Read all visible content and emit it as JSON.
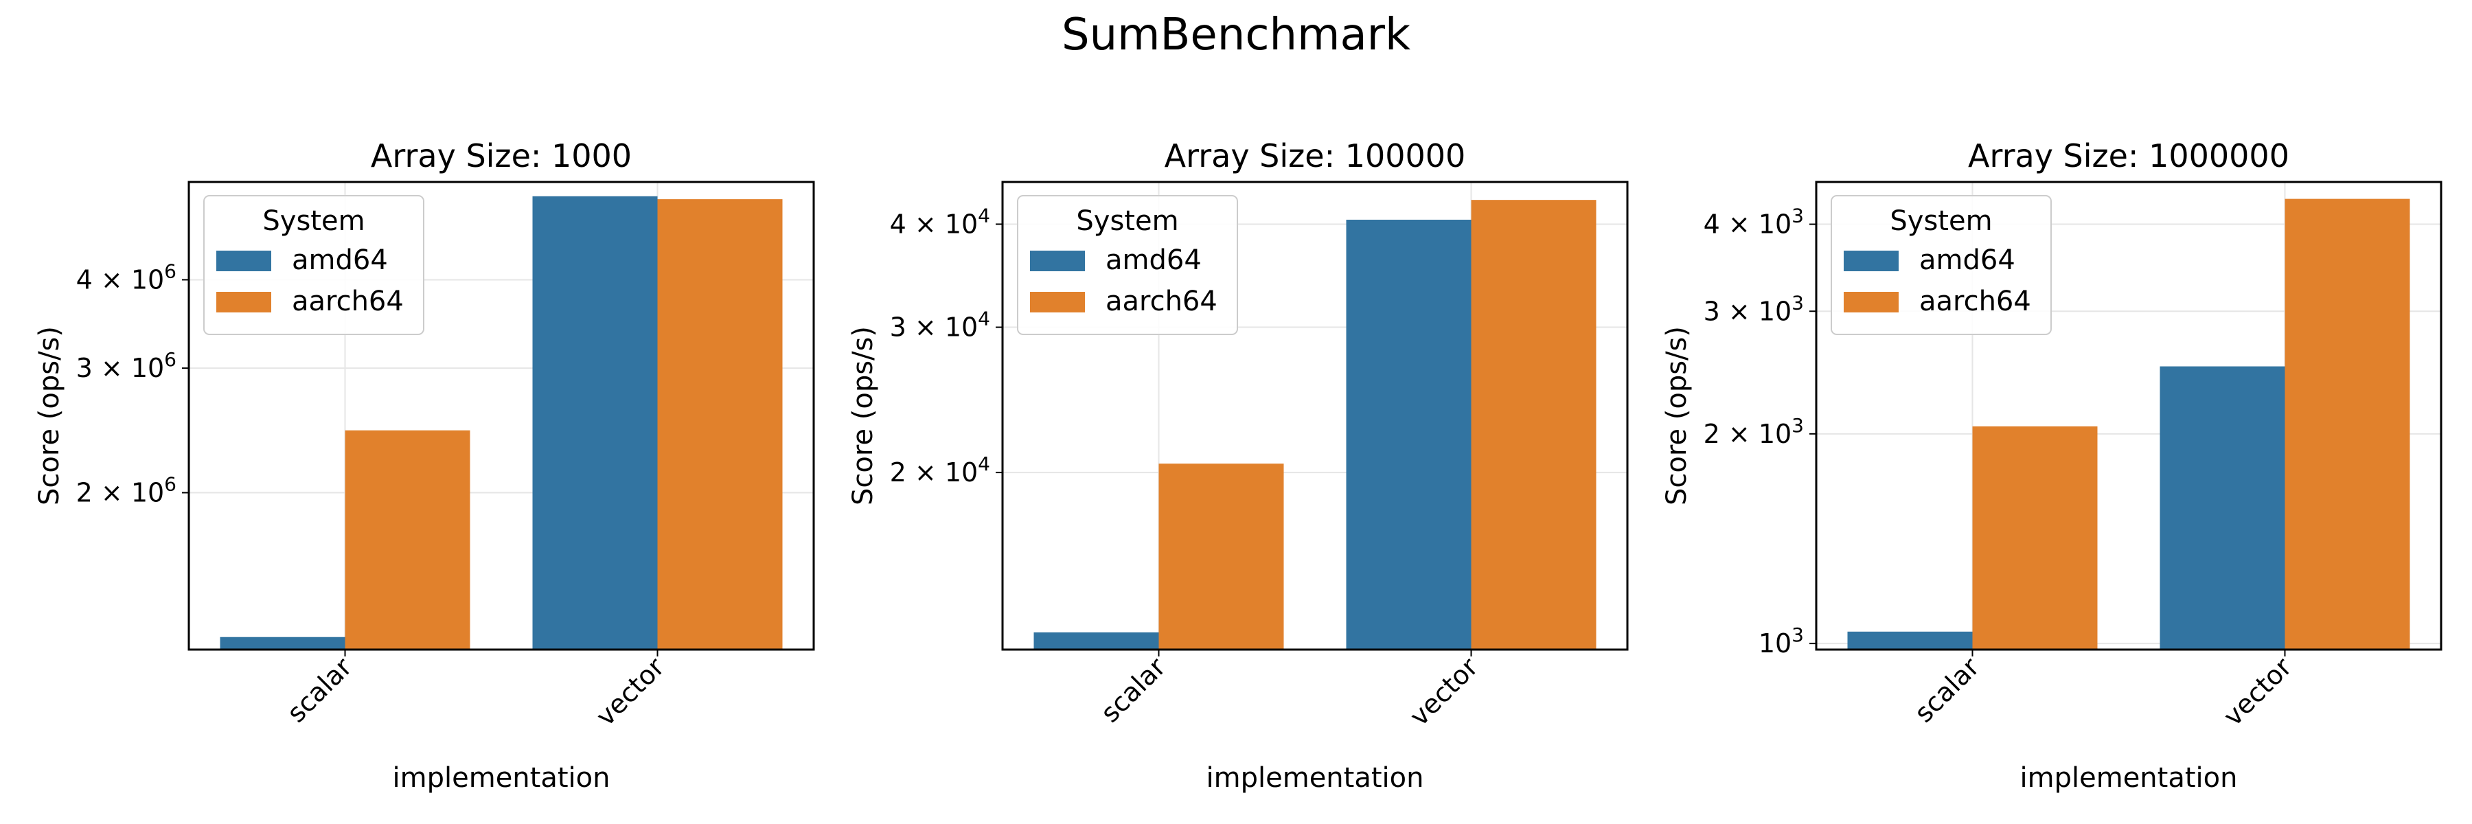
{
  "figure_title": "SumBenchmark",
  "colors": {
    "amd64": "#3274a1",
    "aarch64": "#e1812c"
  },
  "chart_data": [
    {
      "type": "bar",
      "title": "Array Size: 1000",
      "xlabel": "implementation",
      "ylabel": "Score (ops/s)",
      "yscale": "log",
      "ylim": [
        1200000,
        5500000
      ],
      "yticks": [
        {
          "value": 2000000,
          "label": "2 × 10^6"
        },
        {
          "value": 3000000,
          "label": "3 × 10^6"
        },
        {
          "value": 4000000,
          "label": "4 × 10^6"
        }
      ],
      "categories": [
        "scalar",
        "vector"
      ],
      "series": [
        {
          "name": "amd64",
          "values": [
            1250000,
            5250000
          ]
        },
        {
          "name": "aarch64",
          "values": [
            2450000,
            5200000
          ]
        }
      ],
      "legend": {
        "title": "System",
        "position": "upper-left"
      },
      "grid": true
    },
    {
      "type": "bar",
      "title": "Array Size: 100000",
      "xlabel": "implementation",
      "ylabel": "Score (ops/s)",
      "yscale": "log",
      "ylim": [
        12200,
        45000
      ],
      "yticks": [
        {
          "value": 20000,
          "label": "2 × 10^4"
        },
        {
          "value": 30000,
          "label": "3 × 10^4"
        },
        {
          "value": 40000,
          "label": "4 × 10^4"
        }
      ],
      "categories": [
        "scalar",
        "vector"
      ],
      "series": [
        {
          "name": "amd64",
          "values": [
            12800,
            40500
          ]
        },
        {
          "name": "aarch64",
          "values": [
            20500,
            42800
          ]
        }
      ],
      "legend": {
        "title": "System",
        "position": "upper-left"
      },
      "grid": true
    },
    {
      "type": "bar",
      "title": "Array Size: 1000000",
      "xlabel": "implementation",
      "ylabel": "Score (ops/s)",
      "yscale": "log",
      "ylim": [
        980,
        4600
      ],
      "yticks": [
        {
          "value": 1000,
          "label": "10^3"
        },
        {
          "value": 2000,
          "label": "2 × 10^3"
        },
        {
          "value": 3000,
          "label": "3 × 10^3"
        },
        {
          "value": 4000,
          "label": "4 × 10^3"
        }
      ],
      "categories": [
        "scalar",
        "vector"
      ],
      "series": [
        {
          "name": "amd64",
          "values": [
            1040,
            2500
          ]
        },
        {
          "name": "aarch64",
          "values": [
            2050,
            4350
          ]
        }
      ],
      "legend": {
        "title": "System",
        "position": "upper-left"
      },
      "grid": true
    }
  ]
}
